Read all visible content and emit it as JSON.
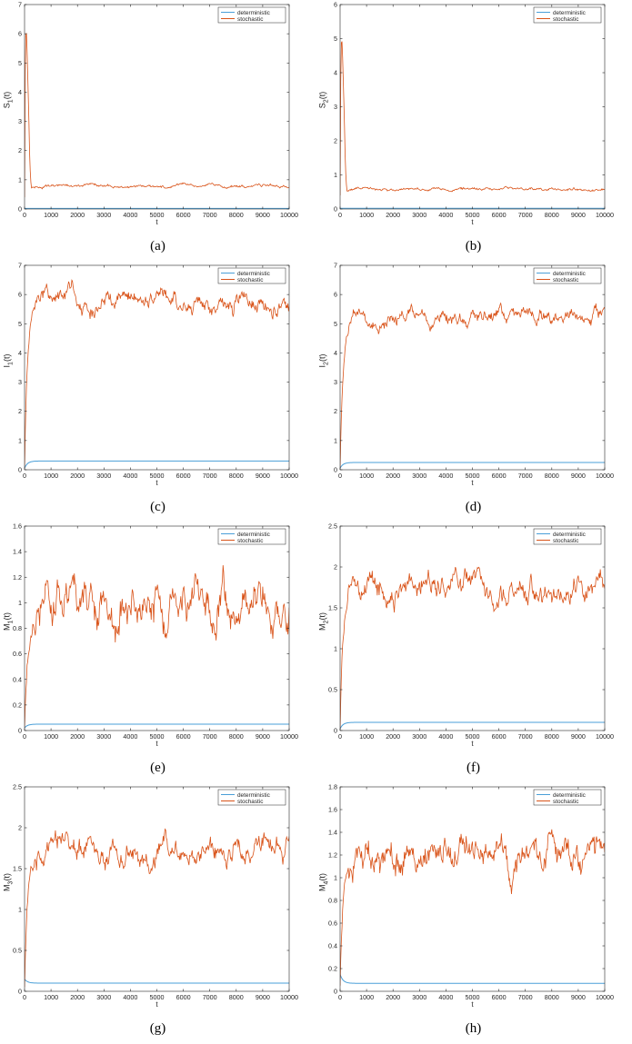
{
  "chart_data": [
    {
      "id": "a",
      "type": "line",
      "caption": "(a)",
      "ylabel_main": "S",
      "ylabel_sub": "1",
      "ylabel_tail": "(t)",
      "xlabel": "t",
      "xlim": [
        0,
        10000
      ],
      "ylim": [
        0,
        7
      ],
      "yticks": [
        0,
        1,
        2,
        3,
        4,
        5,
        6,
        7
      ],
      "xticks": [
        0,
        1000,
        2000,
        3000,
        4000,
        5000,
        6000,
        7000,
        8000,
        9000,
        10000
      ],
      "legend_position": "top-right",
      "series": [
        {
          "name": "deterministic",
          "color": "#4a9fd8",
          "start": 0.02,
          "peak": null,
          "steady": 0.02,
          "noise": 0
        },
        {
          "name": "stochastic",
          "color": "#d95319",
          "start": 0.4,
          "peak": 6.1,
          "steady": 0.78,
          "noise": 0.05
        }
      ]
    },
    {
      "id": "b",
      "type": "line",
      "caption": "(b)",
      "ylabel_main": "S",
      "ylabel_sub": "2",
      "ylabel_tail": "(t)",
      "xlabel": "t",
      "xlim": [
        0,
        10000
      ],
      "ylim": [
        0,
        6
      ],
      "yticks": [
        0,
        1,
        2,
        3,
        4,
        5,
        6
      ],
      "xticks": [
        0,
        1000,
        2000,
        3000,
        4000,
        5000,
        6000,
        7000,
        8000,
        9000,
        10000
      ],
      "legend_position": "top-right",
      "series": [
        {
          "name": "deterministic",
          "color": "#4a9fd8",
          "start": 0.02,
          "peak": null,
          "steady": 0.02,
          "noise": 0
        },
        {
          "name": "stochastic",
          "color": "#d95319",
          "start": 0.4,
          "peak": 5.0,
          "steady": 0.58,
          "noise": 0.04
        }
      ]
    },
    {
      "id": "c",
      "type": "line",
      "caption": "(c)",
      "ylabel_main": "I",
      "ylabel_sub": "1",
      "ylabel_tail": "(t)",
      "xlabel": "t",
      "xlim": [
        0,
        10000
      ],
      "ylim": [
        0,
        7
      ],
      "yticks": [
        0,
        1,
        2,
        3,
        4,
        5,
        6,
        7
      ],
      "xticks": [
        0,
        1000,
        2000,
        3000,
        4000,
        5000,
        6000,
        7000,
        8000,
        9000,
        10000
      ],
      "legend_position": "top-right",
      "series": [
        {
          "name": "deterministic",
          "color": "#4a9fd8",
          "start": 0.05,
          "peak": null,
          "steady": 0.3,
          "noise": 0
        },
        {
          "name": "stochastic",
          "color": "#d95319",
          "start": 0.05,
          "peak": null,
          "steady": 5.8,
          "noise": 0.3
        }
      ]
    },
    {
      "id": "d",
      "type": "line",
      "caption": "(d)",
      "ylabel_main": "I",
      "ylabel_sub": "2",
      "ylabel_tail": "(t)",
      "xlabel": "t",
      "xlim": [
        0,
        10000
      ],
      "ylim": [
        0,
        7
      ],
      "yticks": [
        0,
        1,
        2,
        3,
        4,
        5,
        6,
        7
      ],
      "xticks": [
        0,
        1000,
        2000,
        3000,
        4000,
        5000,
        6000,
        7000,
        8000,
        9000,
        10000
      ],
      "legend_position": "top-right",
      "series": [
        {
          "name": "deterministic",
          "color": "#4a9fd8",
          "start": 0.05,
          "peak": null,
          "steady": 0.25,
          "noise": 0
        },
        {
          "name": "stochastic",
          "color": "#d95319",
          "start": 0.05,
          "peak": null,
          "steady": 5.25,
          "noise": 0.25
        }
      ]
    },
    {
      "id": "e",
      "type": "line",
      "caption": "(e)",
      "ylabel_main": "M",
      "ylabel_sub": "1",
      "ylabel_tail": "(t)",
      "xlabel": "t",
      "xlim": [
        0,
        10000
      ],
      "ylim": [
        0,
        1.6
      ],
      "yticks": [
        0,
        0.2,
        0.4,
        0.6,
        0.8,
        1,
        1.2,
        1.4,
        1.6
      ],
      "xticks": [
        0,
        1000,
        2000,
        3000,
        4000,
        5000,
        6000,
        7000,
        8000,
        9000,
        10000
      ],
      "legend_position": "top-right",
      "series": [
        {
          "name": "deterministic",
          "color": "#4a9fd8",
          "start": 0.02,
          "peak": null,
          "steady": 0.05,
          "noise": 0
        },
        {
          "name": "stochastic",
          "color": "#d95319",
          "start": 0.02,
          "peak": null,
          "steady": 0.95,
          "noise": 0.16
        }
      ]
    },
    {
      "id": "f",
      "type": "line",
      "caption": "(f)",
      "ylabel_main": "M",
      "ylabel_sub": "2",
      "ylabel_tail": "(t)",
      "xlabel": "t",
      "xlim": [
        0,
        10000
      ],
      "ylim": [
        0,
        2.5
      ],
      "yticks": [
        0,
        0.5,
        1,
        1.5,
        2,
        2.5
      ],
      "xticks": [
        0,
        1000,
        2000,
        3000,
        4000,
        5000,
        6000,
        7000,
        8000,
        9000,
        10000
      ],
      "legend_position": "top-right",
      "series": [
        {
          "name": "deterministic",
          "color": "#4a9fd8",
          "start": 0.02,
          "peak": null,
          "steady": 0.1,
          "noise": 0
        },
        {
          "name": "stochastic",
          "color": "#d95319",
          "start": 0.02,
          "peak": null,
          "steady": 1.75,
          "noise": 0.15
        }
      ]
    },
    {
      "id": "g",
      "type": "line",
      "caption": "(g)",
      "ylabel_main": "M",
      "ylabel_sub": "3",
      "ylabel_tail": "(t)",
      "xlabel": "t",
      "xlim": [
        0,
        10000
      ],
      "ylim": [
        0,
        2.5
      ],
      "yticks": [
        0,
        0.5,
        1,
        1.5,
        2,
        2.5
      ],
      "xticks": [
        0,
        1000,
        2000,
        3000,
        4000,
        5000,
        6000,
        7000,
        8000,
        9000,
        10000
      ],
      "legend_position": "top-right",
      "series": [
        {
          "name": "deterministic",
          "color": "#4a9fd8",
          "start": 0.15,
          "peak": null,
          "steady": 0.1,
          "noise": 0
        },
        {
          "name": "stochastic",
          "color": "#d95319",
          "start": 0.05,
          "peak": null,
          "steady": 1.72,
          "noise": 0.14
        }
      ]
    },
    {
      "id": "h",
      "type": "line",
      "caption": "(h)",
      "ylabel_main": "M",
      "ylabel_sub": "4",
      "ylabel_tail": "(t)",
      "xlabel": "t",
      "xlim": [
        0,
        10000
      ],
      "ylim": [
        0,
        1.8
      ],
      "yticks": [
        0,
        0.2,
        0.4,
        0.6,
        0.8,
        1,
        1.2,
        1.4,
        1.6,
        1.8
      ],
      "xticks": [
        0,
        1000,
        2000,
        3000,
        4000,
        5000,
        6000,
        7000,
        8000,
        9000,
        10000
      ],
      "legend_position": "top-right",
      "series": [
        {
          "name": "deterministic",
          "color": "#4a9fd8",
          "start": 0.15,
          "peak": null,
          "steady": 0.07,
          "noise": 0
        },
        {
          "name": "stochastic",
          "color": "#d95319",
          "start": 0.05,
          "peak": null,
          "steady": 1.2,
          "noise": 0.14
        }
      ]
    }
  ]
}
